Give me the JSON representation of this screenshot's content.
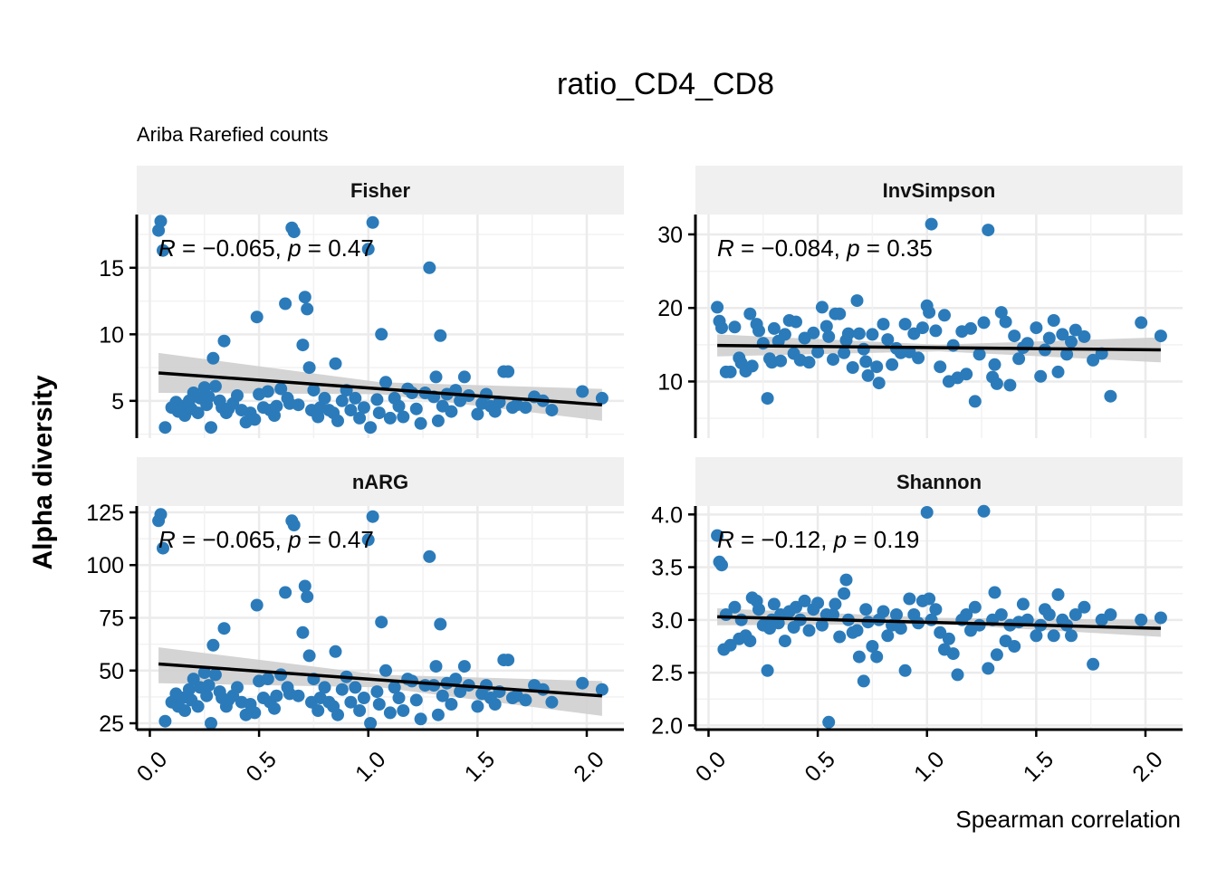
{
  "title": "ratio_CD4_CD8",
  "subtitle": "Ariba Rarefied counts",
  "xlabel": "Spearman correlation",
  "ylabel": "Alpha diversity",
  "colors": {
    "point": "#2B7BBA",
    "line": "#000000",
    "band": "#CFCFCF",
    "strip": "#F0F0F0",
    "grid": "#EBEBEB"
  },
  "chart_data": {
    "type": "scatter",
    "facets": [
      {
        "name": "Fisher",
        "stat": {
          "r": "−0.065",
          "p": "0.47"
        },
        "ylim": [
          2.2,
          19.0
        ],
        "yticks": [
          5,
          10,
          15
        ],
        "fit": {
          "x0": 0.04,
          "y0": 7.1,
          "x1": 2.07,
          "y1": 4.7,
          "lo0": 5.6,
          "hi0": 8.6,
          "lom": 5.5,
          "him": 6.4,
          "lo1": 3.5,
          "hi1": 5.9
        },
        "x": [
          0.04,
          0.05,
          0.06,
          0.07,
          0.1,
          0.12,
          0.13,
          0.15,
          0.16,
          0.18,
          0.19,
          0.2,
          0.22,
          0.23,
          0.25,
          0.26,
          0.27,
          0.28,
          0.29,
          0.3,
          0.32,
          0.33,
          0.34,
          0.35,
          0.36,
          0.38,
          0.4,
          0.42,
          0.44,
          0.46,
          0.48,
          0.49,
          0.5,
          0.52,
          0.54,
          0.55,
          0.57,
          0.58,
          0.6,
          0.62,
          0.63,
          0.64,
          0.65,
          0.66,
          0.68,
          0.7,
          0.71,
          0.72,
          0.73,
          0.74,
          0.75,
          0.77,
          0.78,
          0.8,
          0.82,
          0.84,
          0.85,
          0.86,
          0.88,
          0.9,
          0.92,
          0.94,
          0.96,
          0.98,
          1.0,
          1.01,
          1.02,
          1.04,
          1.05,
          1.06,
          1.08,
          1.1,
          1.12,
          1.14,
          1.16,
          1.18,
          1.2,
          1.22,
          1.24,
          1.26,
          1.28,
          1.3,
          1.31,
          1.32,
          1.33,
          1.34,
          1.36,
          1.38,
          1.4,
          1.42,
          1.44,
          1.46,
          1.5,
          1.52,
          1.54,
          1.56,
          1.58,
          1.6,
          1.62,
          1.64,
          1.66,
          1.68,
          1.72,
          1.76,
          1.8,
          1.84,
          1.98,
          2.07
        ],
        "y": [
          17.8,
          18.5,
          16.3,
          3.0,
          4.5,
          4.9,
          4.2,
          4.6,
          3.9,
          5.0,
          4.4,
          5.6,
          4.1,
          5.2,
          6.0,
          4.7,
          5.3,
          3.0,
          8.2,
          6.1,
          5.0,
          4.5,
          9.5,
          4.1,
          4.4,
          4.8,
          5.4,
          4.3,
          3.4,
          4.1,
          3.6,
          11.3,
          5.5,
          4.5,
          5.7,
          4.3,
          3.9,
          4.6,
          5.9,
          12.3,
          5.2,
          4.8,
          18.0,
          17.7,
          4.7,
          9.2,
          12.8,
          11.9,
          7.5,
          4.3,
          5.8,
          3.8,
          4.5,
          5.2,
          4.3,
          4.1,
          7.8,
          3.5,
          5.0,
          5.8,
          4.3,
          5.2,
          3.7,
          4.5,
          16.4,
          3.0,
          18.4,
          5.1,
          4.1,
          10.0,
          6.4,
          3.7,
          5.2,
          4.6,
          3.8,
          5.9,
          5.6,
          4.4,
          3.3,
          5.6,
          15.0,
          5.3,
          6.8,
          3.5,
          9.9,
          4.6,
          5.5,
          4.2,
          5.8,
          5.0,
          6.8,
          5.4,
          4.0,
          4.8,
          5.5,
          4.6,
          4.2,
          4.9,
          7.2,
          7.2,
          4.5,
          4.7,
          4.5,
          5.3,
          5.0,
          4.3,
          5.7,
          5.2
        ],
        "xlim": [
          -0.06,
          2.17
        ]
      },
      {
        "name": "InvSimpson",
        "stat": {
          "r": "−0.084",
          "p": "0.35"
        },
        "ylim": [
          2.3,
          32.7
        ],
        "yticks": [
          10,
          20,
          30
        ],
        "fit": {
          "x0": 0.04,
          "y0": 14.9,
          "x1": 2.07,
          "y1": 14.3,
          "lo0": 13.4,
          "hi0": 16.4,
          "lom": 14.1,
          "him": 15.0,
          "lo1": 12.6,
          "hi1": 16.0
        },
        "x": [
          0.04,
          0.05,
          0.06,
          0.08,
          0.1,
          0.12,
          0.14,
          0.15,
          0.17,
          0.19,
          0.2,
          0.22,
          0.23,
          0.25,
          0.27,
          0.28,
          0.29,
          0.3,
          0.32,
          0.33,
          0.35,
          0.37,
          0.39,
          0.4,
          0.42,
          0.44,
          0.46,
          0.48,
          0.5,
          0.52,
          0.54,
          0.55,
          0.57,
          0.58,
          0.6,
          0.62,
          0.63,
          0.64,
          0.66,
          0.68,
          0.69,
          0.71,
          0.72,
          0.73,
          0.75,
          0.77,
          0.78,
          0.8,
          0.82,
          0.84,
          0.86,
          0.88,
          0.9,
          0.92,
          0.94,
          0.96,
          0.98,
          1.0,
          1.01,
          1.02,
          1.04,
          1.06,
          1.08,
          1.1,
          1.12,
          1.14,
          1.16,
          1.18,
          1.2,
          1.22,
          1.24,
          1.26,
          1.28,
          1.3,
          1.31,
          1.32,
          1.34,
          1.36,
          1.38,
          1.4,
          1.42,
          1.44,
          1.46,
          1.5,
          1.52,
          1.54,
          1.56,
          1.58,
          1.6,
          1.62,
          1.64,
          1.66,
          1.68,
          1.72,
          1.76,
          1.8,
          1.84,
          1.98,
          2.07
        ],
        "y": [
          20.1,
          18.2,
          17.3,
          11.3,
          11.3,
          17.4,
          13.2,
          12.5,
          11.4,
          19.2,
          12.1,
          17.8,
          16.9,
          15.2,
          7.7,
          13.1,
          12.6,
          17.2,
          15.5,
          12.8,
          16.4,
          18.3,
          13.8,
          18.1,
          12.9,
          15.9,
          12.6,
          16.6,
          14.0,
          20.1,
          17.5,
          16.1,
          13.0,
          19.2,
          19.2,
          13.9,
          15.6,
          16.5,
          11.9,
          21.0,
          16.5,
          14.4,
          12.7,
          10.8,
          16.4,
          12.0,
          9.8,
          17.8,
          15.7,
          12.3,
          14.5,
          13.9,
          17.8,
          14.0,
          16.5,
          13.2,
          17.3,
          20.3,
          19.4,
          31.4,
          16.9,
          12.0,
          19.0,
          10.0,
          14.9,
          10.5,
          16.8,
          11.0,
          17.2,
          7.3,
          13.7,
          18.0,
          30.6,
          10.6,
          12.3,
          9.7,
          19.4,
          18.1,
          9.5,
          16.2,
          13.1,
          14.6,
          15.2,
          17.3,
          10.7,
          14.3,
          15.9,
          18.3,
          11.3,
          16.4,
          13.7,
          15.4,
          17.0,
          16.1,
          12.9,
          13.8,
          8.0,
          18.0,
          16.2
        ],
        "xlim": [
          -0.06,
          2.17
        ]
      },
      {
        "name": "nARG",
        "stat": {
          "r": "−0.065",
          "p": "0.47"
        },
        "ylim": [
          22,
          128
        ],
        "yticks": [
          25,
          50,
          75,
          100,
          125
        ],
        "fit": {
          "x0": 0.04,
          "y0": 53.1,
          "x1": 2.07,
          "y1": 38.0,
          "lo0": 44.0,
          "hi0": 61.0,
          "lom": 42.0,
          "him": 48.0,
          "lo1": 28.5,
          "hi1": 45.0
        },
        "x": [
          0.04,
          0.05,
          0.06,
          0.07,
          0.1,
          0.12,
          0.13,
          0.15,
          0.16,
          0.18,
          0.19,
          0.2,
          0.22,
          0.23,
          0.25,
          0.26,
          0.27,
          0.28,
          0.29,
          0.3,
          0.32,
          0.33,
          0.34,
          0.35,
          0.36,
          0.38,
          0.4,
          0.42,
          0.44,
          0.46,
          0.48,
          0.49,
          0.5,
          0.52,
          0.54,
          0.55,
          0.57,
          0.58,
          0.6,
          0.62,
          0.63,
          0.64,
          0.65,
          0.66,
          0.68,
          0.7,
          0.71,
          0.72,
          0.73,
          0.74,
          0.75,
          0.77,
          0.78,
          0.8,
          0.82,
          0.84,
          0.85,
          0.86,
          0.88,
          0.9,
          0.92,
          0.94,
          0.96,
          0.98,
          1.0,
          1.01,
          1.02,
          1.04,
          1.05,
          1.06,
          1.08,
          1.1,
          1.12,
          1.14,
          1.16,
          1.18,
          1.2,
          1.22,
          1.24,
          1.26,
          1.28,
          1.3,
          1.31,
          1.32,
          1.33,
          1.34,
          1.36,
          1.38,
          1.4,
          1.42,
          1.44,
          1.46,
          1.5,
          1.52,
          1.54,
          1.56,
          1.58,
          1.6,
          1.62,
          1.64,
          1.66,
          1.68,
          1.72,
          1.76,
          1.8,
          1.84,
          1.98,
          2.07
        ],
        "y": [
          121,
          124,
          108,
          26,
          35,
          39,
          33,
          37,
          31,
          41,
          36,
          46,
          33,
          42,
          49,
          38,
          43,
          25,
          62,
          48,
          40,
          37,
          70,
          33,
          36,
          38,
          42,
          35,
          29,
          34,
          30,
          81,
          45,
          37,
          46,
          35,
          32,
          38,
          48,
          87,
          42,
          39,
          121,
          119,
          38,
          68,
          90,
          85,
          57,
          35,
          46,
          31,
          37,
          42,
          35,
          33,
          59,
          29,
          41,
          47,
          35,
          42,
          31,
          37,
          112,
          25,
          123,
          40,
          34,
          73,
          50,
          30,
          42,
          37,
          31,
          46,
          45,
          36,
          27,
          43,
          104,
          43,
          52,
          29,
          72,
          38,
          44,
          34,
          46,
          40,
          52,
          43,
          33,
          39,
          43,
          37,
          34,
          40,
          55,
          55,
          37,
          38,
          36,
          43,
          41,
          35,
          44,
          41
        ],
        "xlim": [
          -0.06,
          2.17
        ]
      },
      {
        "name": "Shannon",
        "stat": {
          "r": "−0.12",
          "p": "0.19"
        },
        "ylim": [
          1.96,
          4.08
        ],
        "yticks": [
          2.0,
          2.5,
          3.0,
          3.5,
          4.0
        ],
        "fit": {
          "x0": 0.04,
          "y0": 3.03,
          "x1": 2.07,
          "y1": 2.92,
          "lo0": 2.95,
          "hi0": 3.11,
          "lom": 2.96,
          "him": 3.02,
          "lo1": 2.84,
          "hi1": 3.0
        },
        "x": [
          0.04,
          0.05,
          0.06,
          0.07,
          0.08,
          0.1,
          0.12,
          0.14,
          0.15,
          0.17,
          0.19,
          0.2,
          0.22,
          0.23,
          0.25,
          0.27,
          0.28,
          0.29,
          0.3,
          0.32,
          0.33,
          0.35,
          0.37,
          0.39,
          0.4,
          0.42,
          0.44,
          0.46,
          0.48,
          0.5,
          0.52,
          0.54,
          0.55,
          0.57,
          0.58,
          0.6,
          0.62,
          0.63,
          0.64,
          0.66,
          0.68,
          0.69,
          0.71,
          0.72,
          0.73,
          0.75,
          0.77,
          0.78,
          0.8,
          0.82,
          0.84,
          0.86,
          0.88,
          0.9,
          0.92,
          0.94,
          0.96,
          0.98,
          1.0,
          1.01,
          1.02,
          1.04,
          1.06,
          1.08,
          1.1,
          1.12,
          1.14,
          1.16,
          1.18,
          1.2,
          1.22,
          1.24,
          1.26,
          1.28,
          1.3,
          1.31,
          1.32,
          1.34,
          1.36,
          1.38,
          1.4,
          1.42,
          1.44,
          1.46,
          1.5,
          1.52,
          1.54,
          1.56,
          1.58,
          1.6,
          1.62,
          1.64,
          1.66,
          1.68,
          1.72,
          1.76,
          1.8,
          1.84,
          1.98,
          2.07
        ],
        "y": [
          3.8,
          3.55,
          3.52,
          2.72,
          3.05,
          2.76,
          3.12,
          2.82,
          3.0,
          2.85,
          2.8,
          3.21,
          3.18,
          3.1,
          2.95,
          2.52,
          2.92,
          3.0,
          3.15,
          2.97,
          3.05,
          2.8,
          3.08,
          2.93,
          3.12,
          3.0,
          3.18,
          2.9,
          3.1,
          3.16,
          2.95,
          3.05,
          2.03,
          3.05,
          3.15,
          2.84,
          3.25,
          3.38,
          3.0,
          2.88,
          2.9,
          2.65,
          2.42,
          3.1,
          2.98,
          2.75,
          2.65,
          3.0,
          3.08,
          2.85,
          2.95,
          3.05,
          2.92,
          2.52,
          3.2,
          3.05,
          2.97,
          3.18,
          4.02,
          3.2,
          3.0,
          3.1,
          2.88,
          2.72,
          2.82,
          2.68,
          2.48,
          3.0,
          3.05,
          2.9,
          3.12,
          2.95,
          4.03,
          2.54,
          3.0,
          3.26,
          2.67,
          3.05,
          2.8,
          2.95,
          2.75,
          2.98,
          3.15,
          3.0,
          2.85,
          2.95,
          3.1,
          3.05,
          2.85,
          3.24,
          3.0,
          2.95,
          2.85,
          3.05,
          3.12,
          2.58,
          3.0,
          3.05,
          3.0,
          3.02
        ],
        "xlim": [
          -0.06,
          2.17
        ]
      }
    ],
    "xticks": [
      "0.0",
      "0.5",
      "1.0",
      "1.5",
      "2.0"
    ],
    "xtick_values": [
      0.0,
      0.5,
      1.0,
      1.5,
      2.0
    ]
  }
}
